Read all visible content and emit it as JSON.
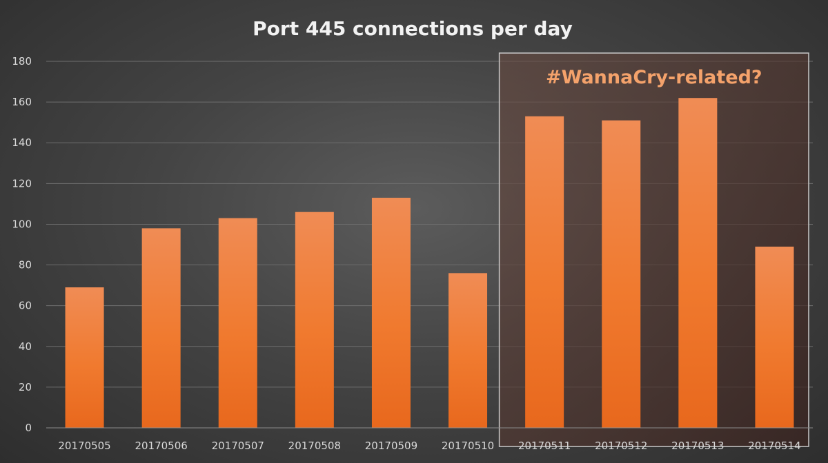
{
  "chart_data": {
    "type": "bar",
    "title": "Port 445 connections per day",
    "xlabel": "",
    "ylabel": "",
    "categories": [
      "20170505",
      "20170506",
      "20170507",
      "20170508",
      "20170509",
      "20170510",
      "20170511",
      "20170512",
      "20170513",
      "20170514"
    ],
    "values": [
      69,
      98,
      103,
      106,
      113,
      76,
      153,
      151,
      162,
      89
    ],
    "ylim": [
      0,
      180
    ],
    "yticks": [
      "0",
      "20",
      "40",
      "60",
      "80",
      "100",
      "120",
      "140",
      "160",
      "180"
    ],
    "grid": true,
    "legend": "none",
    "bar_color": "#f07a2f",
    "annotation": {
      "text": "#WannaCry-related?",
      "color": "#f4a26b",
      "highlight_categories": [
        "20170511",
        "20170512",
        "20170513",
        "20170514"
      ]
    }
  }
}
